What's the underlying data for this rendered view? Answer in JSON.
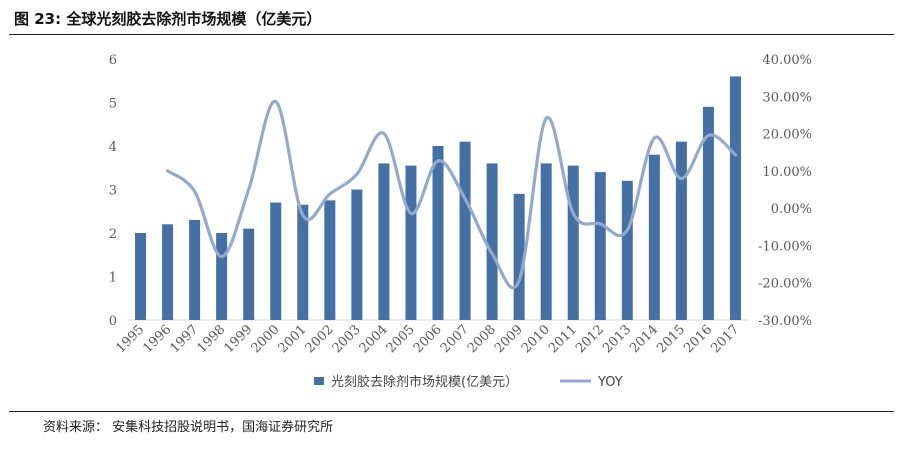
{
  "header": {
    "title": "图 23:  全球光刻胶去除剂市场规模（亿美元）"
  },
  "footer": {
    "source": "资料来源：  安集科技招股说明书，国海证券研究所"
  },
  "colors": {
    "bar": "#4470A6",
    "line": "#93AACD",
    "axis": "#D9D9D9"
  },
  "chart_data": {
    "type": "bar",
    "title": "",
    "categories": [
      "1995",
      "1996",
      "1997",
      "1998",
      "1999",
      "2000",
      "2001",
      "2002",
      "2003",
      "2004",
      "2005",
      "2006",
      "2007",
      "2008",
      "2009",
      "2010",
      "2011",
      "2012",
      "2013",
      "2014",
      "2015",
      "2016",
      "2017"
    ],
    "series": [
      {
        "name": "光刻胶去除剂市场规模(亿美元）",
        "type": "bar",
        "axis": "left",
        "values": [
          2.0,
          2.2,
          2.3,
          2.0,
          2.1,
          2.7,
          2.65,
          2.75,
          3.0,
          3.6,
          3.55,
          4.0,
          4.1,
          3.6,
          2.9,
          3.6,
          3.55,
          3.4,
          3.2,
          3.8,
          4.1,
          4.9,
          5.6
        ]
      },
      {
        "name": "YOY",
        "type": "line",
        "axis": "right",
        "values": [
          null,
          10.0,
          4.5,
          -13.0,
          5.0,
          28.6,
          -1.9,
          3.8,
          9.1,
          20.0,
          -1.4,
          12.7,
          2.5,
          -12.2,
          -19.4,
          24.1,
          -1.4,
          -4.2,
          -5.9,
          18.8,
          7.9,
          19.5,
          14.3
        ]
      }
    ],
    "left_axis": {
      "min": 0,
      "max": 6,
      "ticks": [
        "0",
        "1",
        "2",
        "3",
        "4",
        "5",
        "6"
      ]
    },
    "right_axis": {
      "min": -30,
      "max": 40,
      "ticks": [
        "-30.00%",
        "-20.00%",
        "-10.00%",
        "0.00%",
        "10.00%",
        "20.00%",
        "30.00%",
        "40.00%"
      ]
    },
    "legend": {
      "position": "bottom",
      "entries": [
        "光刻胶去除剂市场规模(亿美元）",
        "YOY"
      ]
    },
    "grid": false
  }
}
